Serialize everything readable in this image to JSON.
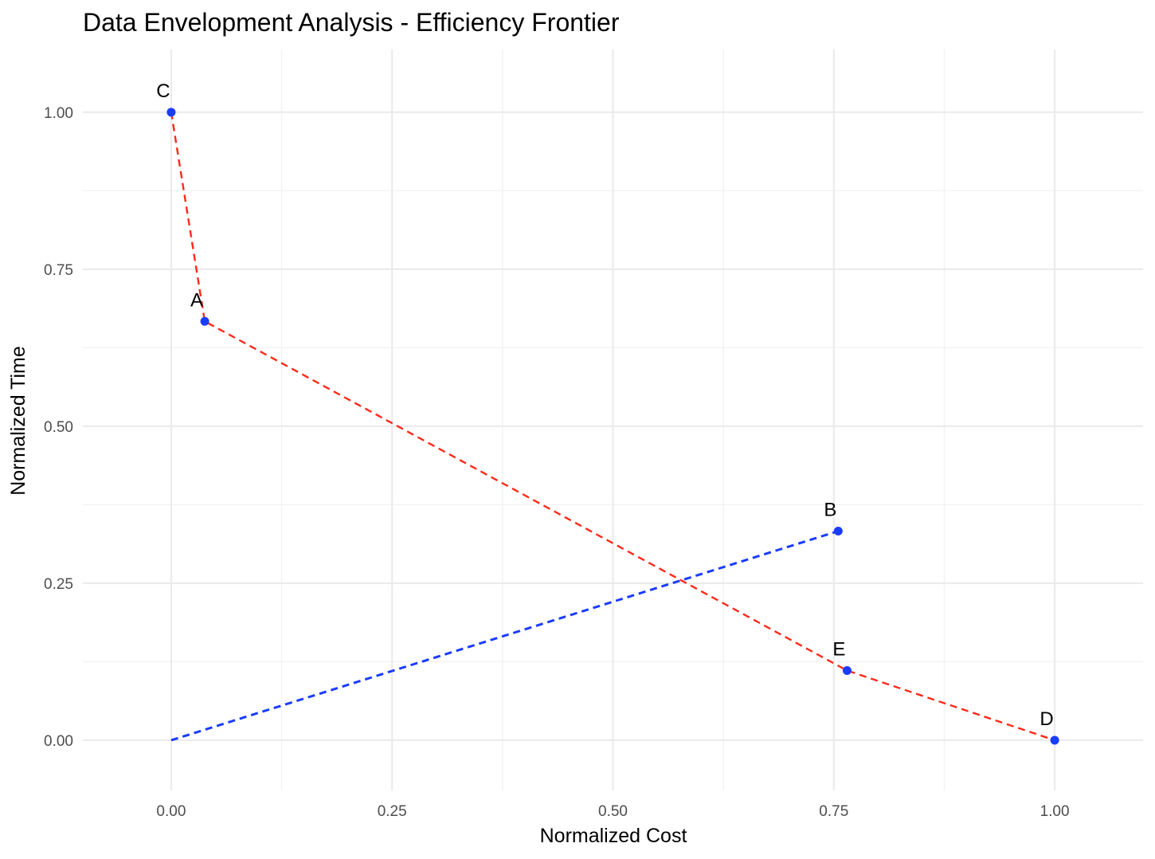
{
  "chart_data": {
    "type": "scatter",
    "title": "Data Envelopment Analysis - Efficiency Frontier",
    "xlabel": "Normalized Cost",
    "ylabel": "Normalized Time",
    "xlim": [
      -0.1,
      1.1
    ],
    "ylim": [
      -0.08,
      1.1
    ],
    "x_ticks": [
      0,
      0.25,
      0.5,
      0.75,
      1
    ],
    "x_tick_labels": [
      "0.00",
      "0.25",
      "0.50",
      "0.75",
      "1.00"
    ],
    "y_ticks": [
      0,
      0.25,
      0.5,
      0.75,
      1
    ],
    "y_tick_labels": [
      "0.00",
      "0.25",
      "0.50",
      "0.75",
      "1.00"
    ],
    "grid": true,
    "points": [
      {
        "label": "C",
        "x": 0.0,
        "y": 1.0
      },
      {
        "label": "A",
        "x": 0.038,
        "y": 0.667
      },
      {
        "label": "B",
        "x": 0.755,
        "y": 0.333
      },
      {
        "label": "E",
        "x": 0.765,
        "y": 0.111
      },
      {
        "label": "D",
        "x": 1.0,
        "y": 0.0
      }
    ],
    "frontier": {
      "style": "dashed",
      "color": "#ff2a1a",
      "path": [
        [
          0.0,
          1.0
        ],
        [
          0.038,
          0.667
        ],
        [
          0.765,
          0.111
        ],
        [
          1.0,
          0.0
        ]
      ]
    },
    "projection": {
      "style": "dashed",
      "color": "#1a3cff",
      "path": [
        [
          0.0,
          0.0
        ],
        [
          0.755,
          0.333
        ]
      ]
    },
    "point_color": "#1a3cff"
  }
}
